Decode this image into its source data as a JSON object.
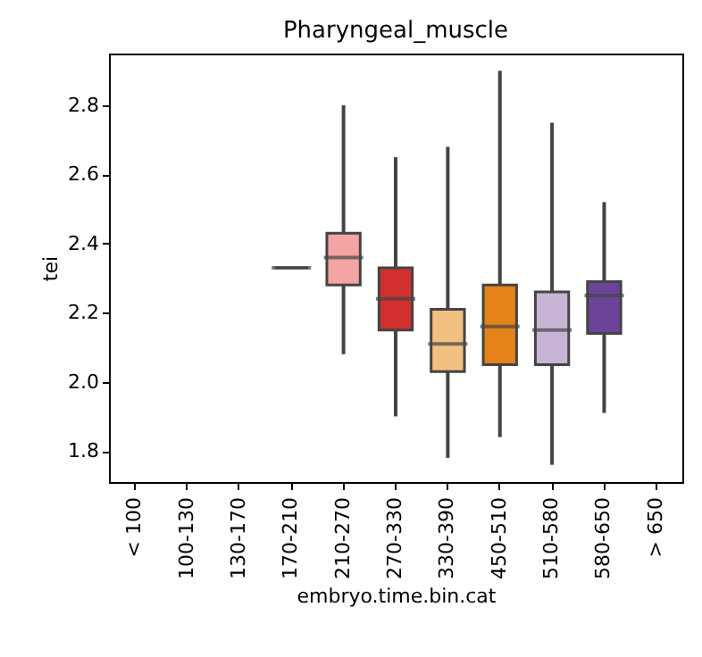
{
  "chart_data": {
    "type": "box",
    "title": "Pharyngeal_muscle",
    "xlabel": "embryo.time.bin.cat",
    "ylabel": "tei",
    "categories": [
      "< 100",
      "100-130",
      "130-170",
      "170-210",
      "210-270",
      "270-330",
      "330-390",
      "450-510",
      "510-580",
      "580-650",
      "> 650"
    ],
    "colors": [
      null,
      null,
      null,
      "#444444",
      "#f4a4a3",
      "#d1302f",
      "#f2c080",
      "#e5821a",
      "#c8b5d5",
      "#6b449a",
      null
    ],
    "boxes": [
      null,
      null,
      null,
      {
        "low": 2.33,
        "q1": 2.33,
        "median": 2.33,
        "q3": 2.33,
        "high": 2.33
      },
      {
        "low": 2.08,
        "q1": 2.28,
        "median": 2.36,
        "q3": 2.43,
        "high": 2.8
      },
      {
        "low": 1.9,
        "q1": 2.15,
        "median": 2.24,
        "q3": 2.33,
        "high": 2.65
      },
      {
        "low": 1.78,
        "q1": 2.03,
        "median": 2.11,
        "q3": 2.21,
        "high": 2.68
      },
      {
        "low": 1.84,
        "q1": 2.05,
        "median": 2.16,
        "q3": 2.28,
        "high": 2.9
      },
      {
        "low": 1.76,
        "q1": 2.05,
        "median": 2.15,
        "q3": 2.26,
        "high": 2.75
      },
      {
        "low": 1.91,
        "q1": 2.14,
        "median": 2.25,
        "q3": 2.29,
        "high": 2.52
      },
      null
    ],
    "ylim": [
      1.71,
      2.95
    ],
    "yticks": [
      1.8,
      {
        "value": 2.0,
        "label": "2.0"
      },
      2.2,
      2.4,
      2.6,
      2.8
    ]
  }
}
